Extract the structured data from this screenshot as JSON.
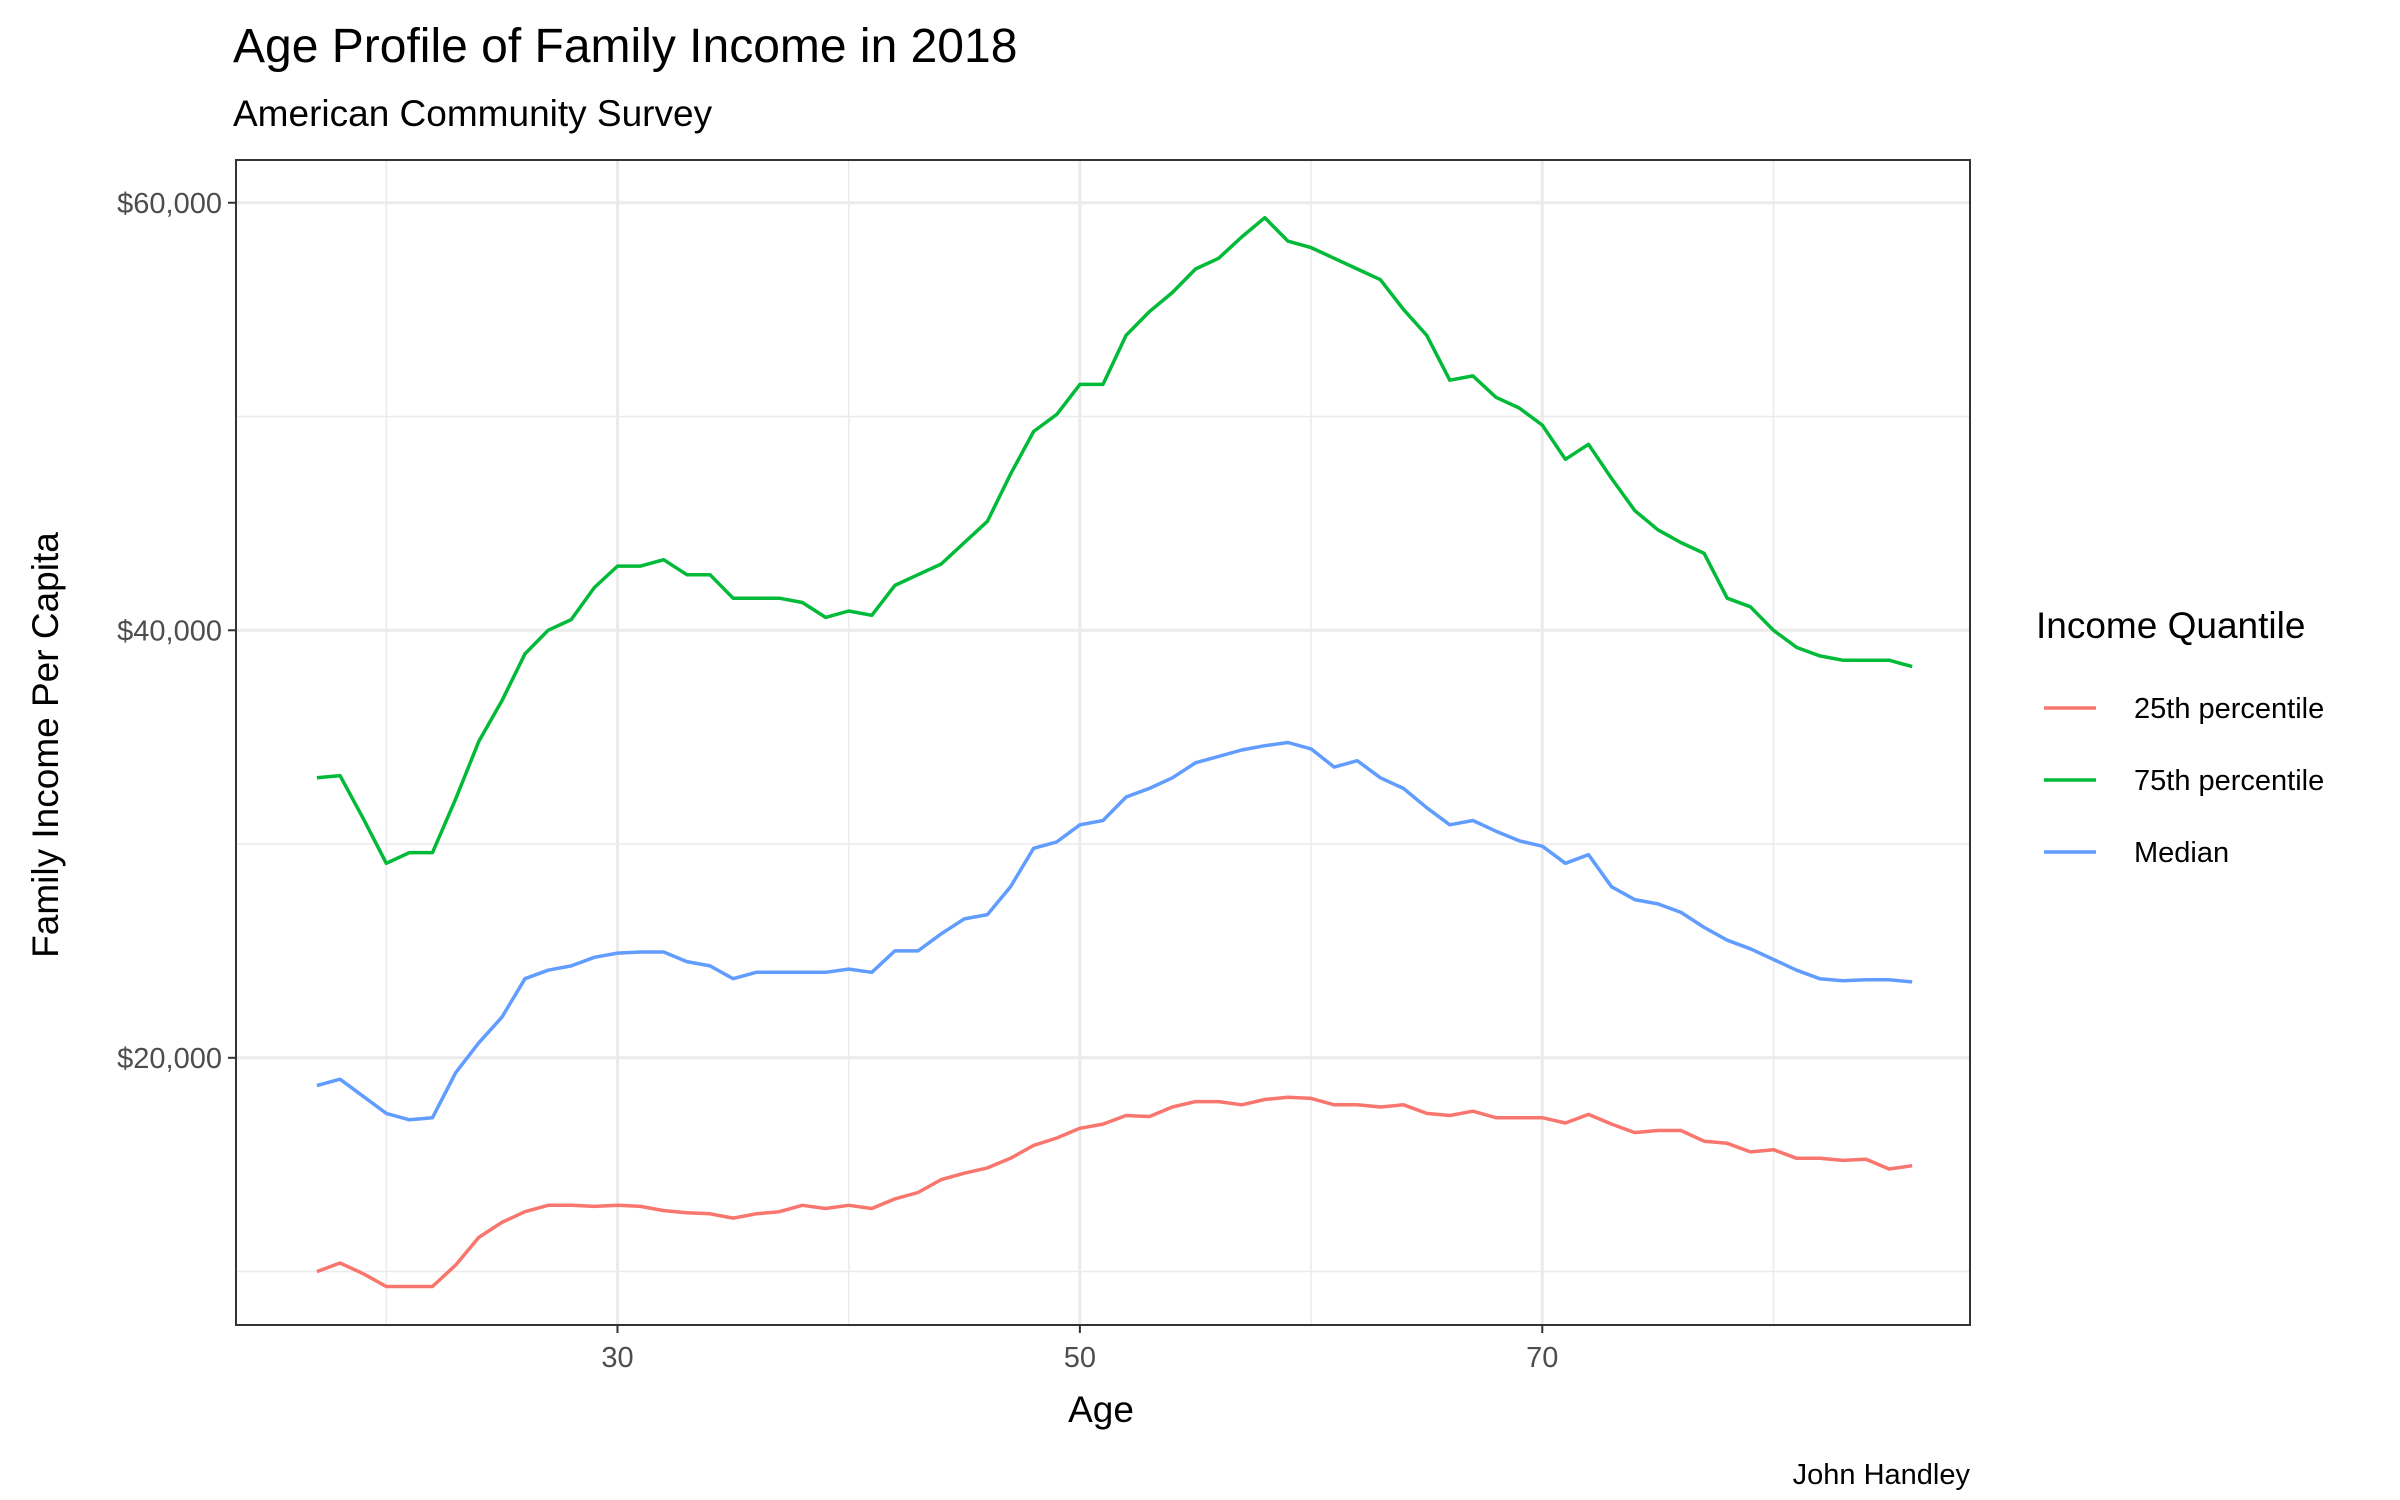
{
  "chart_data": {
    "type": "line",
    "title": "Age Profile of Family Income in 2018",
    "subtitle": "American Community Survey",
    "xlabel": "Age",
    "ylabel": "Family Income Per Capita",
    "caption": "John Handley",
    "xlim": [
      13.5,
      88.5
    ],
    "ylim": [
      7500,
      62000
    ],
    "x_ticks": [
      30,
      50,
      70
    ],
    "x_tick_labels": [
      "30",
      "50",
      "70"
    ],
    "y_ticks": [
      20000,
      40000,
      60000
    ],
    "y_tick_labels": [
      "$20,000",
      "$40,000",
      "$60,000"
    ],
    "grid": true,
    "legend": {
      "title": "Income Quantile",
      "position": "right"
    },
    "x": [
      17,
      18,
      19,
      20,
      21,
      22,
      23,
      24,
      25,
      26,
      27,
      28,
      29,
      30,
      31,
      32,
      33,
      34,
      35,
      36,
      37,
      38,
      39,
      40,
      41,
      42,
      43,
      44,
      45,
      46,
      47,
      48,
      49,
      50,
      51,
      52,
      53,
      54,
      55,
      56,
      57,
      58,
      59,
      60,
      61,
      62,
      63,
      64,
      65,
      66,
      67,
      68,
      69,
      70,
      71,
      72,
      73,
      74,
      75,
      76,
      77,
      78,
      79,
      80,
      81,
      82,
      83,
      84,
      85,
      86
    ],
    "series": [
      {
        "name": "25th percentile",
        "color": "#F8766D",
        "values": [
          10000,
          10400,
          9900,
          9300,
          9300,
          9300,
          10300,
          11600,
          12300,
          12800,
          13100,
          13100,
          13050,
          13100,
          13050,
          12850,
          12750,
          12700,
          12500,
          12700,
          12800,
          13100,
          12950,
          13100,
          12950,
          13400,
          13700,
          14300,
          14600,
          14850,
          15300,
          15900,
          16250,
          16700,
          16900,
          17300,
          17250,
          17700,
          17950,
          17950,
          17800,
          18050,
          18150,
          18100,
          17800,
          17800,
          17700,
          17800,
          17400,
          17300,
          17500,
          17200,
          17200,
          17200,
          16950,
          17350,
          16900,
          16500,
          16600,
          16600,
          16100,
          16000,
          15600,
          15700,
          15300,
          15300,
          15200,
          15250,
          14800,
          14950
        ]
      },
      {
        "name": "75th percentile",
        "color": "#00BA38",
        "values": [
          33100,
          33200,
          31200,
          29100,
          29600,
          29600,
          32100,
          34800,
          36700,
          38900,
          40000,
          40500,
          42000,
          43000,
          43000,
          43300,
          42600,
          42600,
          41500,
          41500,
          41500,
          41300,
          40600,
          40900,
          40700,
          42100,
          42600,
          43100,
          44100,
          45100,
          47300,
          49300,
          50100,
          51500,
          51500,
          53800,
          54900,
          55800,
          56900,
          57400,
          58400,
          59300,
          58200,
          57900,
          57400,
          56900,
          56400,
          55000,
          53800,
          51700,
          51900,
          50900,
          50400,
          49600,
          48000,
          48700,
          47100,
          45600,
          44700,
          44100,
          43600,
          41500,
          41100,
          40000,
          39200,
          38800,
          38600,
          38600,
          38600,
          38300
        ]
      },
      {
        "name": "Median",
        "color": "#619CFF",
        "values": [
          18700,
          19000,
          18200,
          17400,
          17100,
          17200,
          19300,
          20700,
          21900,
          23700,
          24100,
          24300,
          24700,
          24900,
          24950,
          24950,
          24500,
          24300,
          23700,
          24000,
          24000,
          24000,
          24000,
          24150,
          24000,
          25000,
          25000,
          25800,
          26500,
          26700,
          28000,
          29800,
          30100,
          30900,
          31100,
          32200,
          32600,
          33100,
          33800,
          34100,
          34400,
          34600,
          34750,
          34450,
          33600,
          33900,
          33100,
          32600,
          31700,
          30900,
          31100,
          30600,
          30150,
          29900,
          29100,
          29500,
          28000,
          27400,
          27200,
          26800,
          26100,
          25500,
          25100,
          24600,
          24100,
          23700,
          23600,
          23650,
          23650,
          23550
        ]
      }
    ]
  }
}
